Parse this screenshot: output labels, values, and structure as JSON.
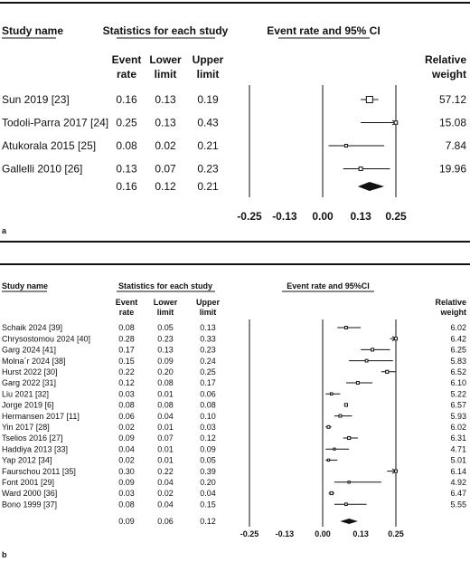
{
  "panels": [
    {
      "id": "a",
      "label": "a",
      "headers": {
        "study": "Study name",
        "stats": "Statistics for each study",
        "plot": "Event rate and 95% CI",
        "col_rate": [
          "Event",
          "rate"
        ],
        "col_lower": [
          "Lower",
          "limit"
        ],
        "col_upper": [
          "Upper",
          "limit"
        ],
        "col_weight": [
          "Relative",
          "weight"
        ]
      },
      "rows": [
        {
          "study": "Sun 2019 [23]",
          "rate": "0.16",
          "lower": "0.13",
          "upper": "0.19",
          "weight": "57.12"
        },
        {
          "study": "Todoli-Parra 2017 [24]",
          "rate": "0.25",
          "lower": "0.13",
          "upper": "0.43",
          "weight": "15.08"
        },
        {
          "study": "Atukorala 2015 [25]",
          "rate": "0.08",
          "lower": "0.02",
          "upper": "0.21",
          "weight": "7.84"
        },
        {
          "study": "Gallelli 2010 [26]",
          "rate": "0.13",
          "lower": "0.07",
          "upper": "0.23",
          "weight": "19.96"
        }
      ],
      "pooled": {
        "rate": "0.16",
        "lower": "0.12",
        "upper": "0.21"
      },
      "xticks": [
        "-0.25",
        "-0.13",
        "0.00",
        "0.13",
        "0.25"
      ]
    },
    {
      "id": "b",
      "label": "b",
      "headers": {
        "study": "Study name",
        "stats": "Statistics for each study",
        "plot": "Event rate and 95%CI",
        "col_rate": [
          "Event",
          "rate"
        ],
        "col_lower": [
          "Lower",
          "limit"
        ],
        "col_upper": [
          "Upper",
          "limit"
        ],
        "col_weight": [
          "Relative",
          "weight"
        ]
      },
      "rows": [
        {
          "study": "Schaik 2024 [39]",
          "rate": "0.08",
          "lower": "0.05",
          "upper": "0.13",
          "weight": "6.02"
        },
        {
          "study": "Chrysostomou 2024 [40]",
          "rate": "0.28",
          "lower": "0.23",
          "upper": "0.33",
          "weight": "6.42"
        },
        {
          "study": "Garg 2024 [41]",
          "rate": "0.17",
          "lower": "0.13",
          "upper": "0.23",
          "weight": "6.25"
        },
        {
          "study": "Molna´r 2024 [38]",
          "rate": "0.15",
          "lower": "0.09",
          "upper": "0.24",
          "weight": "5.83"
        },
        {
          "study": "Hurst 2022 [30]",
          "rate": "0.22",
          "lower": "0.20",
          "upper": "0.25",
          "weight": "6.52"
        },
        {
          "study": "Garg 2022 [31]",
          "rate": "0.12",
          "lower": "0.08",
          "upper": "0.17",
          "weight": "6.10"
        },
        {
          "study": "Liu 2021 [32]",
          "rate": "0.03",
          "lower": "0.01",
          "upper": "0.06",
          "weight": "5.22"
        },
        {
          "study": "Jorge 2019 [6]",
          "rate": "0.08",
          "lower": "0.08",
          "upper": "0.08",
          "weight": "6.57"
        },
        {
          "study": "Hermansen 2017 [11]",
          "rate": "0.06",
          "lower": "0.04",
          "upper": "0.10",
          "weight": "5.93"
        },
        {
          "study": "Yin 2017 [28]",
          "rate": "0.02",
          "lower": "0.01",
          "upper": "0.03",
          "weight": "6.02"
        },
        {
          "study": "Tselios 2016 [27]",
          "rate": "0.09",
          "lower": "0.07",
          "upper": "0.12",
          "weight": "6.31"
        },
        {
          "study": "Haddiya 2013 [33]",
          "rate": "0.04",
          "lower": "0.01",
          "upper": "0.09",
          "weight": "4.71"
        },
        {
          "study": "Yap 2012 [34]",
          "rate": "0.02",
          "lower": "0.01",
          "upper": "0.05",
          "weight": "5.01"
        },
        {
          "study": "Faurschou 2011 [35]",
          "rate": "0.30",
          "lower": "0.22",
          "upper": "0.39",
          "weight": "6.14"
        },
        {
          "study": "Font 2001 [29]",
          "rate": "0.09",
          "lower": "0.04",
          "upper": "0.20",
          "weight": "4.92"
        },
        {
          "study": "Ward 2000 [36]",
          "rate": "0.03",
          "lower": "0.02",
          "upper": "0.04",
          "weight": "6.47"
        },
        {
          "study": "Bono 1999 [37]",
          "rate": "0.08",
          "lower": "0.04",
          "upper": "0.15",
          "weight": "5.55"
        }
      ],
      "pooled": {
        "rate": "0.09",
        "lower": "0.06",
        "upper": "0.12"
      },
      "xticks": [
        "-0.25",
        "-0.13",
        "0.00",
        "0.13",
        "0.25"
      ]
    }
  ],
  "chart_data": [
    {
      "type": "forest",
      "title": "",
      "xlim": [
        -0.25,
        0.25
      ],
      "series": [
        {
          "rate": 0.16,
          "lower": 0.13,
          "upper": 0.19,
          "weight": 57.12
        },
        {
          "rate": 0.25,
          "lower": 0.13,
          "upper": 0.43,
          "weight": 15.08
        },
        {
          "rate": 0.08,
          "lower": 0.02,
          "upper": 0.21,
          "weight": 7.84
        },
        {
          "rate": 0.13,
          "lower": 0.07,
          "upper": 0.23,
          "weight": 19.96
        }
      ],
      "pooled": {
        "rate": 0.16,
        "lower": 0.12,
        "upper": 0.21
      }
    },
    {
      "type": "forest",
      "title": "",
      "xlim": [
        -0.25,
        0.25
      ],
      "series": [
        {
          "rate": 0.08,
          "lower": 0.05,
          "upper": 0.13,
          "weight": 6.02
        },
        {
          "rate": 0.28,
          "lower": 0.23,
          "upper": 0.33,
          "weight": 6.42
        },
        {
          "rate": 0.17,
          "lower": 0.13,
          "upper": 0.23,
          "weight": 6.25
        },
        {
          "rate": 0.15,
          "lower": 0.09,
          "upper": 0.24,
          "weight": 5.83
        },
        {
          "rate": 0.22,
          "lower": 0.2,
          "upper": 0.25,
          "weight": 6.52
        },
        {
          "rate": 0.12,
          "lower": 0.08,
          "upper": 0.17,
          "weight": 6.1
        },
        {
          "rate": 0.03,
          "lower": 0.01,
          "upper": 0.06,
          "weight": 5.22
        },
        {
          "rate": 0.08,
          "lower": 0.08,
          "upper": 0.08,
          "weight": 6.57
        },
        {
          "rate": 0.06,
          "lower": 0.04,
          "upper": 0.1,
          "weight": 5.93
        },
        {
          "rate": 0.02,
          "lower": 0.01,
          "upper": 0.03,
          "weight": 6.02
        },
        {
          "rate": 0.09,
          "lower": 0.07,
          "upper": 0.12,
          "weight": 6.31
        },
        {
          "rate": 0.04,
          "lower": 0.01,
          "upper": 0.09,
          "weight": 4.71
        },
        {
          "rate": 0.02,
          "lower": 0.01,
          "upper": 0.05,
          "weight": 5.01
        },
        {
          "rate": 0.3,
          "lower": 0.22,
          "upper": 0.39,
          "weight": 6.14
        },
        {
          "rate": 0.09,
          "lower": 0.04,
          "upper": 0.2,
          "weight": 4.92
        },
        {
          "rate": 0.03,
          "lower": 0.02,
          "upper": 0.04,
          "weight": 6.47
        },
        {
          "rate": 0.08,
          "lower": 0.04,
          "upper": 0.15,
          "weight": 5.55
        }
      ],
      "pooled": {
        "rate": 0.09,
        "lower": 0.06,
        "upper": 0.12
      }
    }
  ]
}
